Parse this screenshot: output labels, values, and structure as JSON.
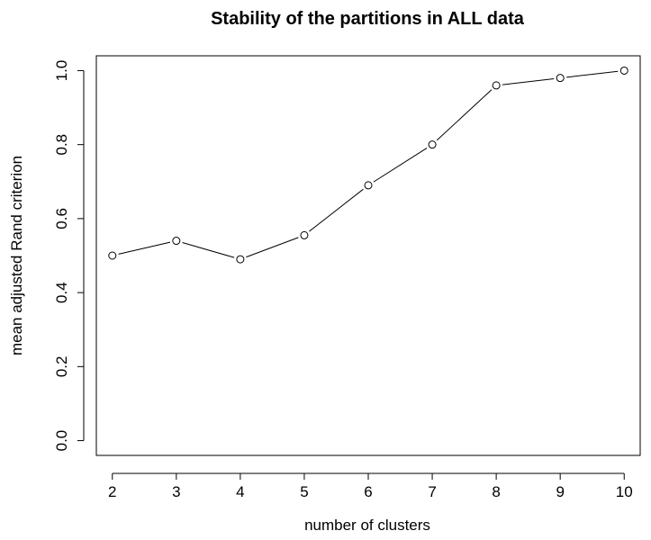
{
  "chart_data": {
    "type": "line",
    "title": "Stability of the partitions in ALL data",
    "xlabel": "number of clusters",
    "ylabel": "mean adjusted Rand criterion",
    "x": [
      2,
      3,
      4,
      5,
      6,
      7,
      8,
      9,
      10
    ],
    "series": [
      {
        "values": [
          0.5,
          0.54,
          0.49,
          0.555,
          0.69,
          0.8,
          0.96,
          0.98,
          1.0
        ]
      }
    ],
    "xticks": [
      "2",
      "3",
      "4",
      "5",
      "6",
      "7",
      "8",
      "9",
      "10"
    ],
    "yticks": [
      "0.0",
      "0.2",
      "0.4",
      "0.6",
      "0.8",
      "1.0"
    ],
    "xlim": [
      1.75,
      10.25
    ],
    "ylim": [
      -0.04,
      1.04
    ],
    "grid": false,
    "marker": "open-circle",
    "colors": {
      "line": "#000000",
      "marker": "#000000",
      "background": "#ffffff"
    }
  }
}
